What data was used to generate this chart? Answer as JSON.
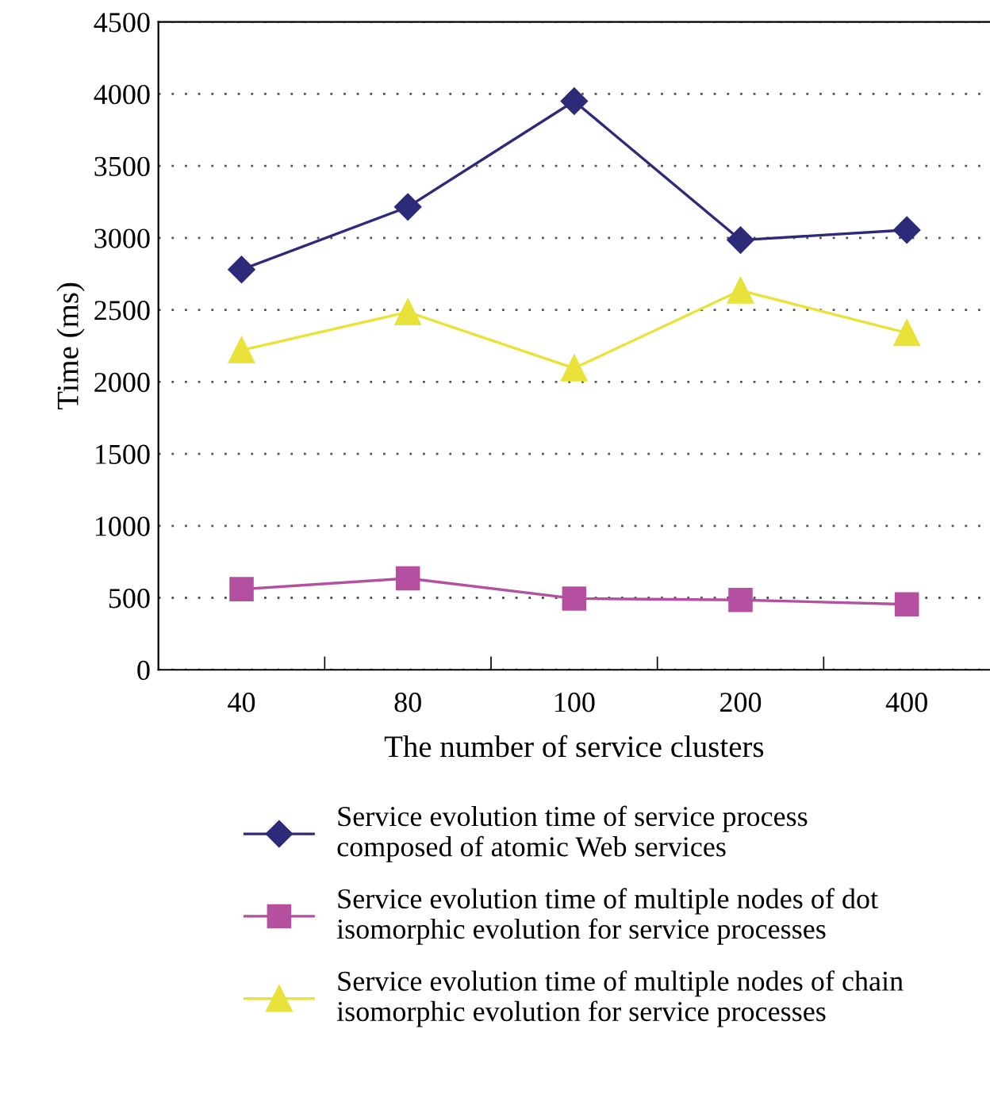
{
  "chart_data": {
    "type": "line",
    "xlabel": "The number of service clusters",
    "ylabel": "Time (ms)",
    "categories": [
      "40",
      "80",
      "100",
      "200",
      "400"
    ],
    "series": [
      {
        "name": "Service evolution time of service process\ncomposed of atomic Web services",
        "color": "#2e2a7a",
        "marker": "diamond",
        "values": [
          2780,
          3215,
          3950,
          2985,
          3055
        ]
      },
      {
        "name": "Service evolution time of multiple nodes of dot\nisomorphic evolution for service processes",
        "color": "#b4509f",
        "marker": "square",
        "values": [
          560,
          635,
          495,
          485,
          455
        ]
      },
      {
        "name": "Service evolution time of multiple nodes of chain\nisomorphic evolution for service processes",
        "color": "#e8e23a",
        "marker": "triangle",
        "values": [
          2220,
          2485,
          2095,
          2635,
          2340
        ]
      }
    ],
    "ylim": [
      0,
      4500
    ],
    "yticks": [
      0,
      500,
      1000,
      1500,
      2000,
      2500,
      3000,
      3500,
      4000,
      4500
    ],
    "grid": "y",
    "legend": "bottom",
    "line_style": "solid"
  }
}
